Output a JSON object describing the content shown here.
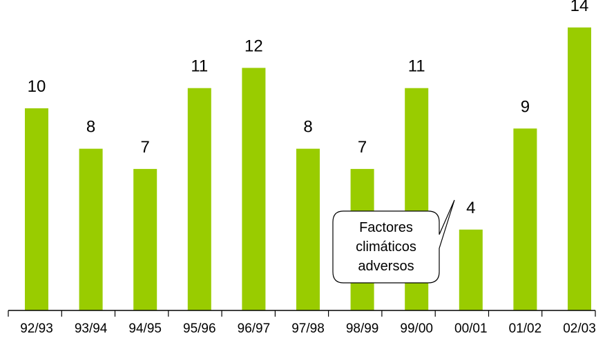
{
  "chart_data": {
    "type": "bar",
    "title": "",
    "xlabel": "",
    "ylabel": "",
    "categories": [
      "92/93",
      "93/94",
      "94/95",
      "95/96",
      "96/97",
      "97/98",
      "98/99",
      "99/00",
      "00/01",
      "01/02",
      "02/03"
    ],
    "values": [
      10,
      8,
      7,
      11,
      12,
      8,
      7,
      11,
      4,
      9,
      14
    ],
    "ylim": [
      0,
      14
    ],
    "grid": false,
    "legend": "none",
    "bar_color": "#99cc00",
    "annotation": {
      "lines": [
        "Factores",
        "climáticos",
        "adversos"
      ],
      "points_to": "00/01"
    }
  }
}
